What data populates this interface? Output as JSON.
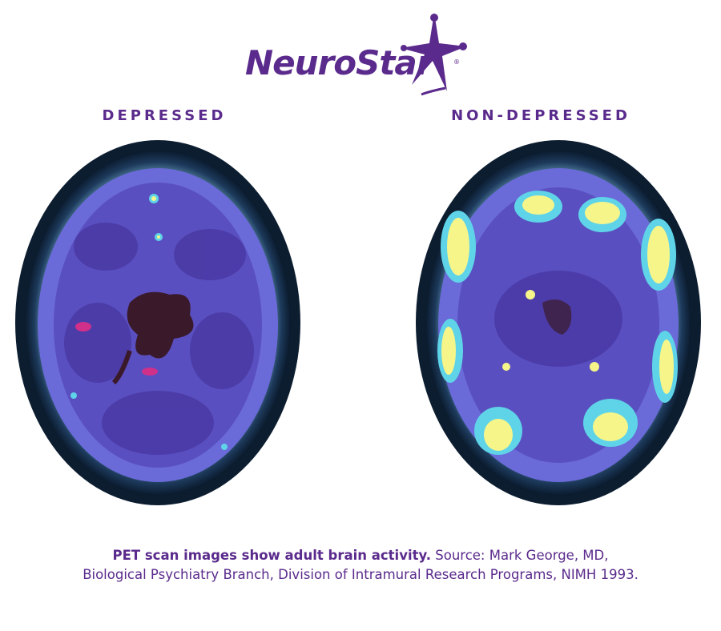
{
  "logo": {
    "text": "NeuroStar",
    "registered": "®"
  },
  "labels": {
    "left": "DEPRESSED",
    "right": "NON-DEPRESSED"
  },
  "caption": {
    "bold": "PET scan images show adult brain activity.",
    "rest": " Source: Mark George, MD,",
    "line2": "Biological Psychiatry Branch, Division of Intramural Research Programs, NIMH 1993."
  },
  "colors": {
    "brand": "#5a2a8c",
    "scan_base": "#5a4fc0",
    "scan_dark": "#3b2a8a",
    "scan_hot": "#f6f58a",
    "scan_cyan": "#5fd4e8",
    "scan_core": "#3a1a2a",
    "scan_magenta": "#d0308a"
  }
}
